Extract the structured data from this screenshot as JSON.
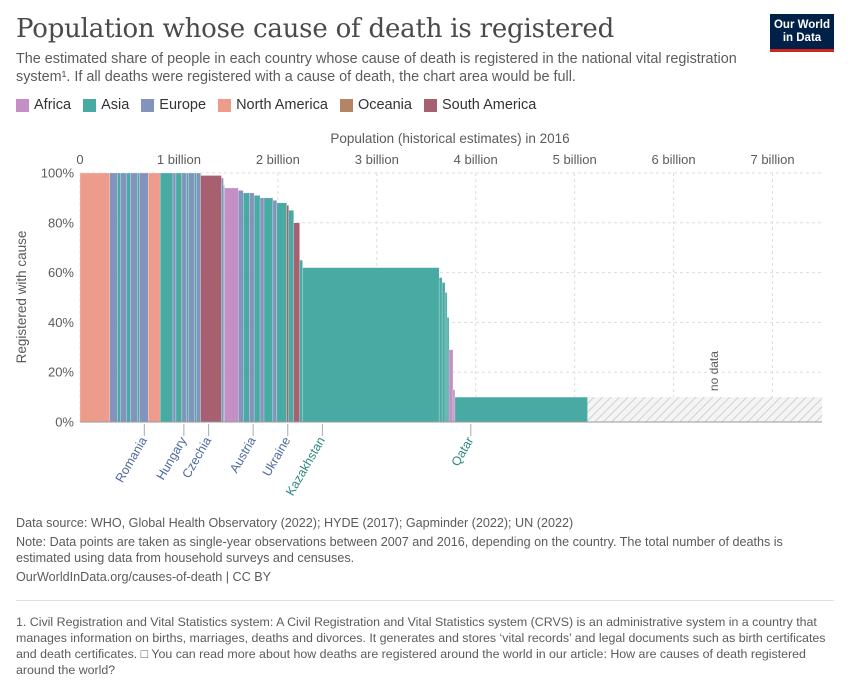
{
  "header": {
    "title": "Population whose cause of death is registered",
    "subtitle": "The estimated share of people in each country whose cause of death is registered in the national vital registration system¹. If all deaths were registered with a cause of death, the chart area would be full.",
    "logo_line1": "Our World",
    "logo_line2": "in Data"
  },
  "legend": [
    {
      "label": "Africa",
      "color": "#c38fc5"
    },
    {
      "label": "Asia",
      "color": "#48aaa3"
    },
    {
      "label": "Europe",
      "color": "#8393bd"
    },
    {
      "label": "North America",
      "color": "#ed9c8c"
    },
    {
      "label": "Oceania",
      "color": "#b48464"
    },
    {
      "label": "South America",
      "color": "#a76070"
    }
  ],
  "chart_data": {
    "type": "bar",
    "title": "Population whose cause of death is registered",
    "xlabel": "Population (historical estimates) in 2016",
    "ylabel": "Registered with cause",
    "xlim": [
      0,
      7.5
    ],
    "ylim": [
      0,
      100
    ],
    "x_unit": "billion",
    "x_ticks": [
      {
        "value": 0,
        "label": "0"
      },
      {
        "value": 1,
        "label": "1 billion"
      },
      {
        "value": 2,
        "label": "2 billion"
      },
      {
        "value": 3,
        "label": "3 billion"
      },
      {
        "value": 4,
        "label": "4 billion"
      },
      {
        "value": 5,
        "label": "5 billion"
      },
      {
        "value": 6,
        "label": "6 billion"
      },
      {
        "value": 7,
        "label": "7 billion"
      }
    ],
    "y_ticks": [
      {
        "value": 0,
        "label": "0%"
      },
      {
        "value": 20,
        "label": "20%"
      },
      {
        "value": 40,
        "label": "40%"
      },
      {
        "value": 60,
        "label": "60%"
      },
      {
        "value": 80,
        "label": "80%"
      },
      {
        "value": 100,
        "label": "100%"
      }
    ],
    "grid": true,
    "bars": [
      {
        "region": "North America",
        "width": 0.3,
        "value": 100
      },
      {
        "region": "Europe",
        "width": 0.08,
        "value": 100
      },
      {
        "region": "Asia",
        "width": 0.03,
        "value": 100
      },
      {
        "region": "Europe",
        "width": 0.06,
        "value": 100
      },
      {
        "region": "Asia",
        "width": 0.04,
        "value": 100
      },
      {
        "region": "Europe",
        "width": 0.07,
        "value": 100
      },
      {
        "region": "Asia",
        "width": 0.02,
        "value": 100
      },
      {
        "region": "Europe",
        "width": 0.09,
        "value": 100
      },
      {
        "region": "North America",
        "width": 0.12,
        "value": 100
      },
      {
        "region": "Asia",
        "width": 0.13,
        "value": 100
      },
      {
        "region": "Europe",
        "width": 0.03,
        "value": 100
      },
      {
        "region": "Asia",
        "width": 0.06,
        "value": 100
      },
      {
        "region": "Europe",
        "width": 0.05,
        "value": 100
      },
      {
        "region": "Asia",
        "width": 0.02,
        "value": 100
      },
      {
        "region": "Europe",
        "width": 0.06,
        "value": 100
      },
      {
        "region": "Asia",
        "width": 0.02,
        "value": 100
      },
      {
        "region": "Europe",
        "width": 0.04,
        "value": 100
      },
      {
        "region": "South America",
        "width": 0.21,
        "value": 99
      },
      {
        "region": "Europe",
        "width": 0.02,
        "value": 98
      },
      {
        "region": "Asia",
        "width": 0.01,
        "value": 95
      },
      {
        "region": "Africa",
        "width": 0.14,
        "value": 94
      },
      {
        "region": "Europe",
        "width": 0.05,
        "value": 93
      },
      {
        "region": "Asia",
        "width": 0.06,
        "value": 92
      },
      {
        "region": "Europe",
        "width": 0.05,
        "value": 92
      },
      {
        "region": "Asia",
        "width": 0.06,
        "value": 91
      },
      {
        "region": "Europe",
        "width": 0.04,
        "value": 90
      },
      {
        "region": "Asia",
        "width": 0.09,
        "value": 90
      },
      {
        "region": "Europe",
        "width": 0.04,
        "value": 89
      },
      {
        "region": "Asia",
        "width": 0.1,
        "value": 88
      },
      {
        "region": "South America",
        "width": 0.02,
        "value": 87
      },
      {
        "region": "Asia",
        "width": 0.05,
        "value": 85
      },
      {
        "region": "South America",
        "width": 0.06,
        "value": 80
      },
      {
        "region": "Asia",
        "width": 0.03,
        "value": 65
      },
      {
        "region": "Asia",
        "width": 1.38,
        "value": 62
      },
      {
        "region": "Asia",
        "width": 0.03,
        "value": 58
      },
      {
        "region": "Asia",
        "width": 0.03,
        "value": 56
      },
      {
        "region": "Asia",
        "width": 0.02,
        "value": 52
      },
      {
        "region": "Asia",
        "width": 0.02,
        "value": 42
      },
      {
        "region": "Africa",
        "width": 0.04,
        "value": 29
      },
      {
        "region": "Africa",
        "width": 0.02,
        "value": 13
      },
      {
        "region": "Asia",
        "width": 1.34,
        "value": 10
      }
    ],
    "no_data": {
      "label": "no data",
      "value": 10
    },
    "country_labels": [
      {
        "label": "Romania",
        "x": 0.65,
        "region": "Europe"
      },
      {
        "label": "Hungary",
        "x": 1.05,
        "region": "Europe"
      },
      {
        "label": "Czechia",
        "x": 1.3,
        "region": "Europe"
      },
      {
        "label": "Austria",
        "x": 1.75,
        "region": "Europe"
      },
      {
        "label": "Ukraine",
        "x": 2.1,
        "region": "Europe"
      },
      {
        "label": "Kazakhstan",
        "x": 2.45,
        "region": "Asia"
      },
      {
        "label": "Qatar",
        "x": 3.95,
        "region": "Asia"
      }
    ]
  },
  "footer": {
    "source": "Data source: WHO, Global Health Observatory (2022); HYDE (2017); Gapminder (2022); UN (2022)",
    "note": "Note: Data points are taken as single-year observations between 2007 and 2016, depending on the country. The total number of deaths is estimated using data from household surveys and censuses.",
    "url": "OurWorldInData.org/causes-of-death | CC BY",
    "footnote": "1. Civil Registration and Vital Statistics system: A Civil Registration and Vital Statistics system (CRVS) is an administrative system in a country that manages information on births, marriages, deaths and divorces. It generates and stores ‘vital records’ and legal documents such as birth certificates and death certificates. □ You can read more about how deaths are registered around the world in our article: How are causes of death registered around the world?"
  }
}
